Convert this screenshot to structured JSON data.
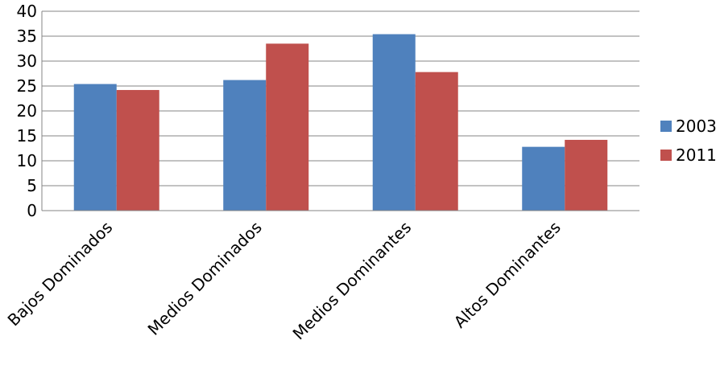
{
  "chart_data": {
    "type": "bar",
    "title": "",
    "xlabel": "",
    "ylabel": "",
    "categories": [
      "Bajos Dominados",
      "Medios Dominados",
      "Medios Dominantes",
      "Altos Dominantes"
    ],
    "series": [
      {
        "name": "2003",
        "color": "#4f81bd",
        "values": [
          25.4,
          26.2,
          35.4,
          12.8
        ]
      },
      {
        "name": "2011",
        "color": "#c0504d",
        "values": [
          24.2,
          33.5,
          27.8,
          14.2
        ]
      }
    ],
    "ylim": [
      0,
      40
    ],
    "yticks": [
      "0",
      "5",
      "10",
      "15",
      "20",
      "25",
      "30",
      "35",
      "40"
    ],
    "grid": true,
    "legend_position": "right"
  }
}
